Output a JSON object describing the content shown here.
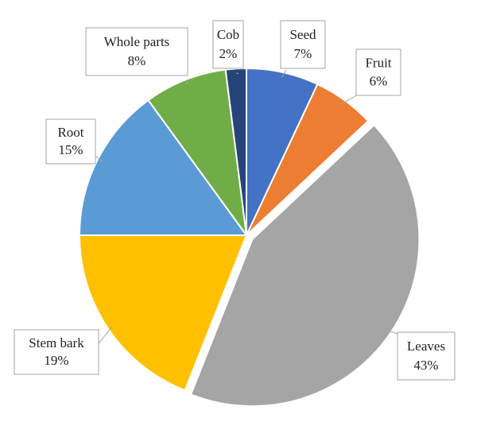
{
  "chart_data": {
    "type": "pie",
    "categories": [
      "Seed",
      "Fruit",
      "Leaves",
      "Stem bark",
      "Root",
      "Whole parts",
      "Cob"
    ],
    "values": [
      7,
      6,
      43,
      19,
      15,
      8,
      2
    ],
    "value_labels": [
      "7%",
      "6%",
      "43%",
      "19%",
      "15%",
      "8%",
      "2%"
    ],
    "colors": [
      "#4472c4",
      "#ed7d31",
      "#a5a5a5",
      "#ffc000",
      "#5b9bd5",
      "#70ad47",
      "#264478"
    ],
    "exploded": [
      "Leaves"
    ]
  }
}
